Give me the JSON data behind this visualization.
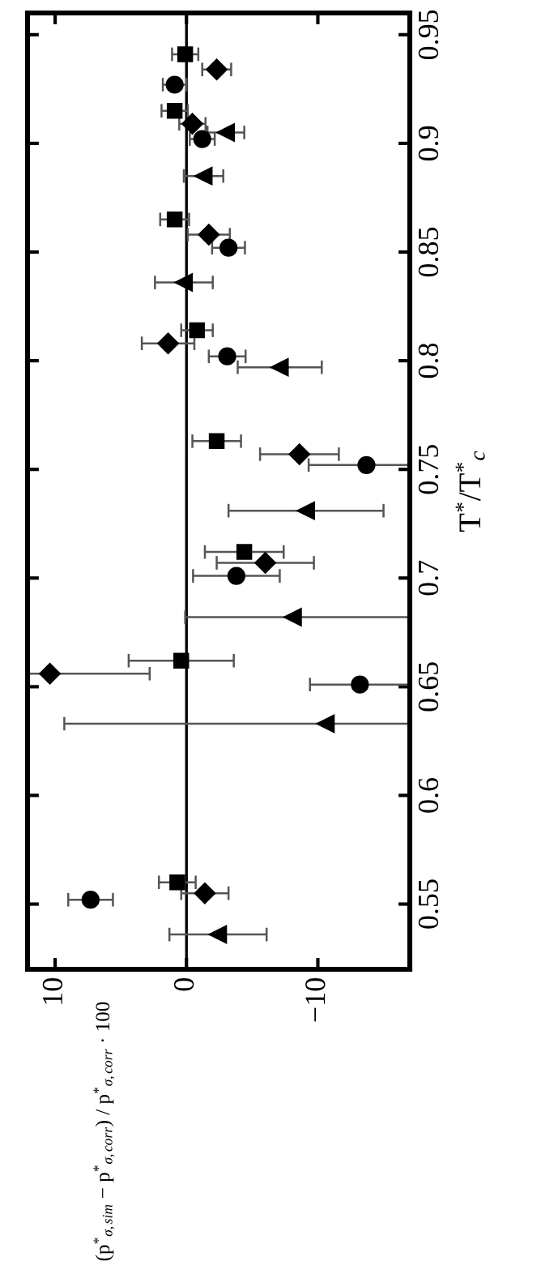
{
  "chart_data": {
    "type": "scatter",
    "xlabel": "(p$^{*}$$_{σ,sim}$ − p$^{*}$$_{σ,corr}$) / p$^{*}$$_{σ,corr}$ · 100",
    "ylabel": "T$^{*}$/T$^{*}$$_{c}$",
    "xlim": [
      12.1,
      -17
    ],
    "ylim": [
      0.52,
      0.96
    ],
    "xticks": [
      10,
      0,
      {
        "value": -10,
        "label": "−10"
      }
    ],
    "yticks": [
      0.55,
      0.6,
      0.65,
      0.7,
      0.75,
      0.8,
      0.85,
      0.9,
      0.95
    ],
    "grid": false,
    "legend": false,
    "ref_lines": [
      {
        "axis": "x",
        "value": 0,
        "color": "#000000"
      }
    ],
    "series": [
      {
        "color": "#000000",
        "marker": "circle",
        "values": [
          0.552,
          0.651,
          0.701,
          0.752,
          0.802,
          0.852,
          0.902,
          0.927
        ],
        "x": [
          7.3,
          -13.2,
          -3.8,
          -13.7,
          -3.1,
          -3.2,
          -1.2,
          0.9
        ],
        "xerrors": [
          1.7,
          [
            -17,
            -9.4
          ],
          3.3,
          [
            -17,
            -9.3
          ],
          1.4,
          1.25,
          0.95,
          0.9
        ]
      },
      {
        "color": "#000000",
        "marker": "square",
        "values": [
          0.56,
          0.662,
          0.712,
          0.763,
          0.814,
          0.865,
          0.915,
          0.941
        ],
        "x": [
          0.7,
          0.4,
          -4.4,
          -2.3,
          -0.8,
          0.9,
          0.9,
          0.1
        ],
        "xerrors": [
          1.4,
          4.0,
          3.0,
          1.85,
          1.2,
          1.1,
          1.0,
          1.0
        ]
      },
      {
        "color": "#000000",
        "marker": "diamond",
        "values": [
          0.555,
          0.656,
          0.707,
          0.757,
          0.808,
          0.858,
          0.909,
          0.934
        ],
        "x": [
          -1.4,
          10.4,
          -6.0,
          -8.6,
          1.4,
          -1.7,
          -0.45,
          -2.3
        ],
        "xerrors": [
          1.8,
          [
            2.8,
            12.1
          ],
          3.7,
          3.0,
          2.0,
          1.6,
          1.0,
          1.1
        ]
      },
      {
        "color": "#000000",
        "marker": "triangle",
        "values": [
          0.536,
          0.633,
          0.682,
          0.731,
          0.797,
          0.836,
          0.885,
          0.905
        ],
        "x": [
          -2.4,
          -10.6,
          -8.1,
          -9.1,
          -7.1,
          0.2,
          -1.3,
          -3.0
        ],
        "xerrors": [
          3.7,
          [
            -17,
            9.3
          ],
          [
            -17,
            0.1
          ],
          5.9,
          3.2,
          2.2,
          1.5,
          1.4
        ]
      }
    ]
  }
}
